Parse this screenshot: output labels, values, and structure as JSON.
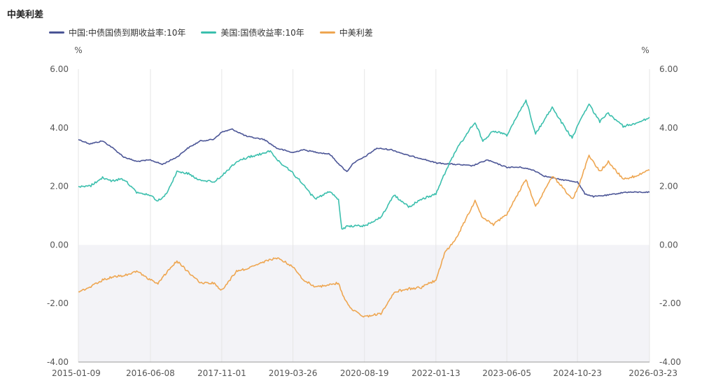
{
  "title": "中美利差",
  "colors": {
    "china": "#4b5596",
    "us": "#3bbfad",
    "spread": "#eea651",
    "negative_band": "#f3f3f7",
    "grid": "#e6e6e6",
    "axis": "#999999"
  },
  "legend": [
    {
      "label": "中国:中债国债到期收益率:10年",
      "color_key": "china"
    },
    {
      "label": "美国:国债收益率:10年",
      "color_key": "us"
    },
    {
      "label": "中美利差",
      "color_key": "spread"
    }
  ],
  "chart_data": {
    "type": "line",
    "title": "中美利差",
    "xlabel": "",
    "ylabel_left": "%",
    "ylabel_right": "%",
    "ylim": [
      -4,
      6
    ],
    "yticks": [
      "6.00",
      "4.00",
      "2.00",
      "0.00",
      "-2.00",
      "-4.00"
    ],
    "x_tick_labels": [
      "2015-01-09",
      "2016-06-08",
      "2017-11-01",
      "2019-03-26",
      "2020-08-19",
      "2022-01-13",
      "2023-06-05",
      "2024-10-23",
      "2026-03-23"
    ],
    "grid": true,
    "legend_position": "top-left",
    "series": [
      {
        "name": "中国:中债国债到期收益率:10年",
        "color_key": "china",
        "points": [
          [
            "2015-01-09",
            3.6
          ],
          [
            "2015-04-01",
            3.45
          ],
          [
            "2015-07-01",
            3.55
          ],
          [
            "2015-09-01",
            3.35
          ],
          [
            "2015-12-01",
            3.0
          ],
          [
            "2016-03-01",
            2.85
          ],
          [
            "2016-06-08",
            2.9
          ],
          [
            "2016-09-01",
            2.75
          ],
          [
            "2016-12-15",
            3.0
          ],
          [
            "2017-03-01",
            3.3
          ],
          [
            "2017-06-01",
            3.55
          ],
          [
            "2017-09-01",
            3.6
          ],
          [
            "2017-11-01",
            3.85
          ],
          [
            "2018-01-15",
            3.95
          ],
          [
            "2018-05-01",
            3.7
          ],
          [
            "2018-09-01",
            3.6
          ],
          [
            "2018-12-01",
            3.3
          ],
          [
            "2019-03-26",
            3.15
          ],
          [
            "2019-06-01",
            3.25
          ],
          [
            "2019-10-01",
            3.15
          ],
          [
            "2019-12-15",
            3.1
          ],
          [
            "2020-03-01",
            2.7
          ],
          [
            "2020-04-15",
            2.5
          ],
          [
            "2020-06-01",
            2.8
          ],
          [
            "2020-08-19",
            3.0
          ],
          [
            "2020-11-15",
            3.3
          ],
          [
            "2021-03-01",
            3.25
          ],
          [
            "2021-07-01",
            3.05
          ],
          [
            "2021-10-01",
            2.95
          ],
          [
            "2022-01-13",
            2.8
          ],
          [
            "2022-06-01",
            2.75
          ],
          [
            "2022-10-01",
            2.7
          ],
          [
            "2023-01-15",
            2.9
          ],
          [
            "2023-06-05",
            2.65
          ],
          [
            "2023-09-15",
            2.65
          ],
          [
            "2023-12-15",
            2.55
          ],
          [
            "2024-03-01",
            2.35
          ],
          [
            "2024-06-01",
            2.25
          ],
          [
            "2024-10-23",
            2.15
          ],
          [
            "2024-12-15",
            1.75
          ],
          [
            "2025-02-15",
            1.65
          ],
          [
            "2025-06-01",
            1.7
          ],
          [
            "2025-10-01",
            1.8
          ],
          [
            "2026-03-23",
            1.8
          ]
        ]
      },
      {
        "name": "美国:国债收益率:10年",
        "color_key": "us",
        "points": [
          [
            "2015-01-09",
            2.0
          ],
          [
            "2015-04-01",
            2.0
          ],
          [
            "2015-07-01",
            2.3
          ],
          [
            "2015-09-01",
            2.2
          ],
          [
            "2015-12-01",
            2.25
          ],
          [
            "2016-03-01",
            1.8
          ],
          [
            "2016-06-08",
            1.7
          ],
          [
            "2016-08-01",
            1.5
          ],
          [
            "2016-10-01",
            1.75
          ],
          [
            "2016-12-15",
            2.5
          ],
          [
            "2017-03-01",
            2.45
          ],
          [
            "2017-06-01",
            2.2
          ],
          [
            "2017-09-01",
            2.15
          ],
          [
            "2017-11-01",
            2.35
          ],
          [
            "2018-02-15",
            2.85
          ],
          [
            "2018-05-15",
            3.0
          ],
          [
            "2018-10-15",
            3.2
          ],
          [
            "2018-12-15",
            2.85
          ],
          [
            "2019-03-26",
            2.45
          ],
          [
            "2019-06-01",
            2.1
          ],
          [
            "2019-09-01",
            1.55
          ],
          [
            "2019-12-15",
            1.85
          ],
          [
            "2020-02-15",
            1.55
          ],
          [
            "2020-03-10",
            0.55
          ],
          [
            "2020-05-01",
            0.65
          ],
          [
            "2020-08-19",
            0.65
          ],
          [
            "2020-12-15",
            0.95
          ],
          [
            "2021-03-20",
            1.7
          ],
          [
            "2021-07-01",
            1.3
          ],
          [
            "2021-10-01",
            1.55
          ],
          [
            "2022-01-13",
            1.75
          ],
          [
            "2022-04-01",
            2.6
          ],
          [
            "2022-06-15",
            3.3
          ],
          [
            "2022-10-20",
            4.2
          ],
          [
            "2022-12-15",
            3.55
          ],
          [
            "2023-03-01",
            3.9
          ],
          [
            "2023-06-05",
            3.75
          ],
          [
            "2023-10-20",
            4.95
          ],
          [
            "2023-12-28",
            3.8
          ],
          [
            "2024-04-25",
            4.7
          ],
          [
            "2024-06-15",
            4.3
          ],
          [
            "2024-09-15",
            3.65
          ],
          [
            "2024-10-23",
            4.05
          ],
          [
            "2025-01-14",
            4.8
          ],
          [
            "2025-04-01",
            4.2
          ],
          [
            "2025-06-01",
            4.5
          ],
          [
            "2025-09-15",
            4.05
          ],
          [
            "2025-12-15",
            4.15
          ],
          [
            "2026-03-23",
            4.35
          ]
        ]
      },
      {
        "name": "中美利差",
        "color_key": "spread",
        "points": [
          [
            "2015-01-09",
            -1.6
          ],
          [
            "2015-04-01",
            -1.45
          ],
          [
            "2015-07-01",
            -1.2
          ],
          [
            "2015-09-01",
            -1.1
          ],
          [
            "2015-12-01",
            -1.05
          ],
          [
            "2016-03-01",
            -0.9
          ],
          [
            "2016-06-08",
            -1.2
          ],
          [
            "2016-08-01",
            -1.3
          ],
          [
            "2016-10-01",
            -0.95
          ],
          [
            "2016-12-15",
            -0.55
          ],
          [
            "2017-03-01",
            -0.9
          ],
          [
            "2017-06-01",
            -1.3
          ],
          [
            "2017-09-01",
            -1.3
          ],
          [
            "2017-11-01",
            -1.55
          ],
          [
            "2018-02-15",
            -0.9
          ],
          [
            "2018-05-15",
            -0.8
          ],
          [
            "2018-10-15",
            -0.5
          ],
          [
            "2018-12-15",
            -0.45
          ],
          [
            "2019-03-26",
            -0.75
          ],
          [
            "2019-06-01",
            -1.15
          ],
          [
            "2019-09-01",
            -1.45
          ],
          [
            "2019-12-15",
            -1.35
          ],
          [
            "2020-02-15",
            -1.3
          ],
          [
            "2020-04-01",
            -1.9
          ],
          [
            "2020-06-01",
            -2.25
          ],
          [
            "2020-08-19",
            -2.45
          ],
          [
            "2020-12-15",
            -2.35
          ],
          [
            "2021-03-20",
            -1.6
          ],
          [
            "2021-07-01",
            -1.5
          ],
          [
            "2021-10-01",
            -1.45
          ],
          [
            "2022-01-13",
            -1.2
          ],
          [
            "2022-03-15",
            -0.3
          ],
          [
            "2022-06-15",
            0.3
          ],
          [
            "2022-10-20",
            1.5
          ],
          [
            "2022-12-15",
            0.9
          ],
          [
            "2023-03-01",
            0.7
          ],
          [
            "2023-06-05",
            1.05
          ],
          [
            "2023-10-20",
            2.25
          ],
          [
            "2023-12-28",
            1.3
          ],
          [
            "2024-04-25",
            2.35
          ],
          [
            "2024-06-15",
            2.1
          ],
          [
            "2024-09-15",
            1.55
          ],
          [
            "2024-10-23",
            1.9
          ],
          [
            "2025-01-14",
            3.05
          ],
          [
            "2025-04-01",
            2.5
          ],
          [
            "2025-06-01",
            2.85
          ],
          [
            "2025-09-15",
            2.25
          ],
          [
            "2025-12-15",
            2.35
          ],
          [
            "2026-03-23",
            2.55
          ]
        ]
      }
    ]
  }
}
